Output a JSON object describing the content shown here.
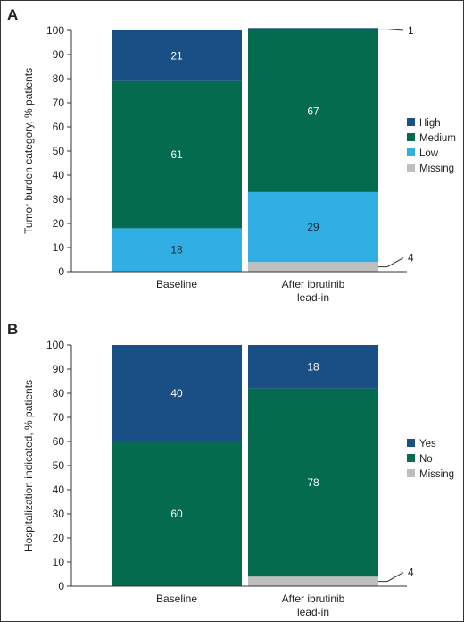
{
  "colors": {
    "high": "#1a4f86",
    "medium": "#046b4f",
    "low": "#31aee3",
    "missing": "#bebebe",
    "yes": "#1a4f86",
    "no": "#046b4f"
  },
  "chart_data": [
    {
      "type": "bar",
      "stacked": true,
      "panel_label": "A",
      "ylabel": "Tumor burden category, % patients",
      "ylim": [
        0,
        100
      ],
      "yticks": [
        0,
        10,
        20,
        30,
        40,
        50,
        60,
        70,
        80,
        90,
        100
      ],
      "categories": [
        [
          "Baseline"
        ],
        [
          "After ibrutinib",
          "lead-in"
        ]
      ],
      "series": [
        {
          "name": "Missing",
          "color_key": "missing",
          "values": [
            0,
            4
          ]
        },
        {
          "name": "Low",
          "color_key": "low",
          "values": [
            18,
            29
          ]
        },
        {
          "name": "Medium",
          "color_key": "medium",
          "values": [
            61,
            67
          ]
        },
        {
          "name": "High",
          "color_key": "high",
          "values": [
            21,
            1
          ]
        }
      ],
      "legend_order": [
        "High",
        "Medium",
        "Low",
        "Missing"
      ],
      "legend_position": "right",
      "grid": false
    },
    {
      "type": "bar",
      "stacked": true,
      "panel_label": "B",
      "ylabel": "Hospitalization indicated, % patients",
      "ylim": [
        0,
        100
      ],
      "yticks": [
        0,
        10,
        20,
        30,
        40,
        50,
        60,
        70,
        80,
        90,
        100
      ],
      "categories": [
        [
          "Baseline"
        ],
        [
          "After ibrutinib",
          "lead-in"
        ]
      ],
      "series": [
        {
          "name": "Missing",
          "color_key": "missing",
          "values": [
            0,
            4
          ]
        },
        {
          "name": "No",
          "color_key": "no",
          "values": [
            60,
            78
          ]
        },
        {
          "name": "Yes",
          "color_key": "yes",
          "values": [
            40,
            18
          ]
        }
      ],
      "legend_order": [
        "Yes",
        "No",
        "Missing"
      ],
      "legend_position": "right",
      "grid": false
    }
  ]
}
